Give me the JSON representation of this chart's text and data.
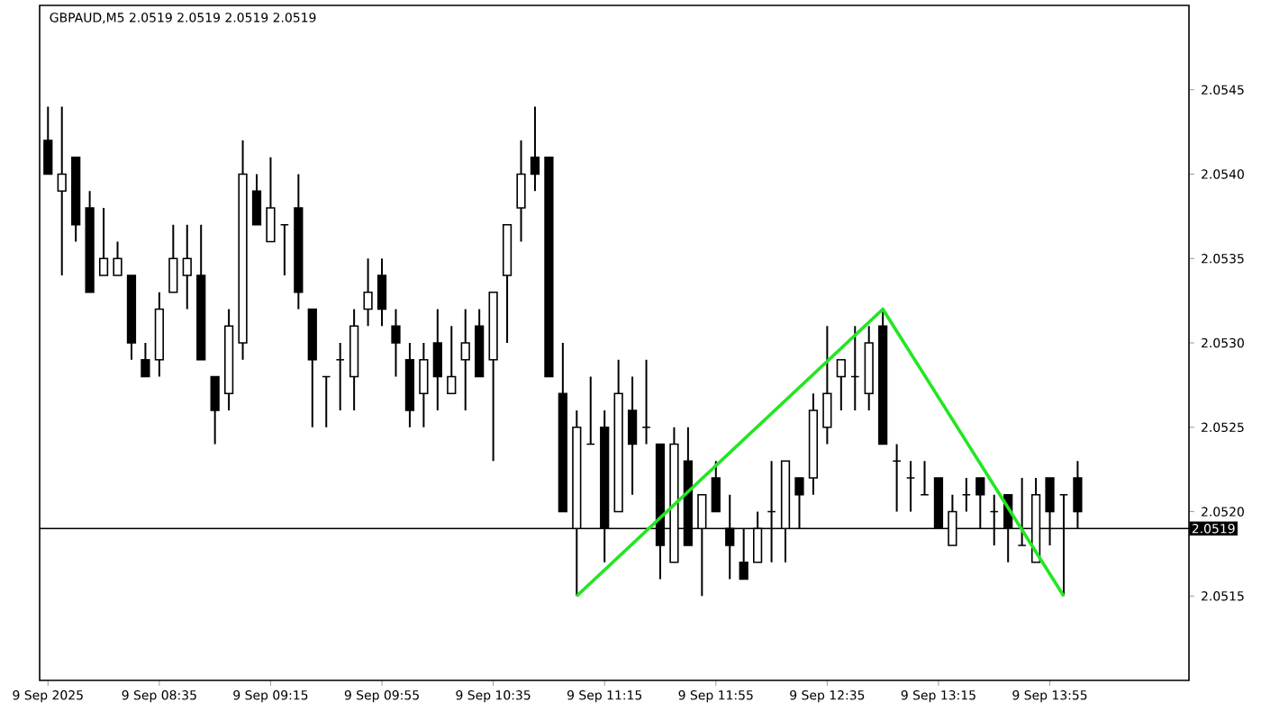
{
  "chart_data": {
    "type": "candlestick",
    "title": "GBPAUD,M5  2.0519 2.0519 2.0519 2.0519",
    "xlim": [
      "2025-09-09T07:52",
      "2025-09-09T14:45"
    ],
    "xticks": [
      {
        "value": "2025-09-09T07:55",
        "label": "9 Sep 2025"
      },
      {
        "value": "2025-09-09T08:35",
        "label": "9 Sep 08:35"
      },
      {
        "value": "2025-09-09T09:15",
        "label": "9 Sep 09:15"
      },
      {
        "value": "2025-09-09T09:55",
        "label": "9 Sep 09:55"
      },
      {
        "value": "2025-09-09T10:35",
        "label": "9 Sep 10:35"
      },
      {
        "value": "2025-09-09T11:15",
        "label": "9 Sep 11:15"
      },
      {
        "value": "2025-09-09T11:55",
        "label": "9 Sep 11:55"
      },
      {
        "value": "2025-09-09T12:35",
        "label": "9 Sep 12:35"
      },
      {
        "value": "2025-09-09T13:15",
        "label": "9 Sep 13:15"
      },
      {
        "value": "2025-09-09T13:55",
        "label": "9 Sep 13:55"
      }
    ],
    "ylim": [
      2.051,
      2.055
    ],
    "yticks": [
      2.0515,
      {
        "value": 2.052,
        "label": "2.0520"
      },
      2.0525,
      {
        "value": 2.053,
        "label": "2.0530"
      },
      2.0535,
      {
        "value": 2.054,
        "label": "2.0540"
      },
      2.0545
    ],
    "ref_lines": [
      {
        "axis": "y",
        "value": 2.0519,
        "label": "2.0519"
      }
    ],
    "series": [
      {
        "x": [
          "2025-09-09T07:55",
          "2025-09-09T08:00",
          "2025-09-09T08:05",
          "2025-09-09T08:10",
          "2025-09-09T08:15",
          "2025-09-09T08:20",
          "2025-09-09T08:25",
          "2025-09-09T08:30",
          "2025-09-09T08:35",
          "2025-09-09T08:40",
          "2025-09-09T08:45",
          "2025-09-09T08:50",
          "2025-09-09T08:55",
          "2025-09-09T09:00",
          "2025-09-09T09:05",
          "2025-09-09T09:10",
          "2025-09-09T09:15",
          "2025-09-09T09:20",
          "2025-09-09T09:25",
          "2025-09-09T09:30",
          "2025-09-09T09:35",
          "2025-09-09T09:40",
          "2025-09-09T09:45",
          "2025-09-09T09:50",
          "2025-09-09T09:55",
          "2025-09-09T10:00",
          "2025-09-09T10:05",
          "2025-09-09T10:10",
          "2025-09-09T10:15",
          "2025-09-09T10:20",
          "2025-09-09T10:25",
          "2025-09-09T10:30",
          "2025-09-09T10:35",
          "2025-09-09T10:40",
          "2025-09-09T10:45",
          "2025-09-09T10:50",
          "2025-09-09T10:55",
          "2025-09-09T11:00",
          "2025-09-09T11:05",
          "2025-09-09T11:10",
          "2025-09-09T11:15",
          "2025-09-09T11:20",
          "2025-09-09T11:25",
          "2025-09-09T11:30",
          "2025-09-09T11:35",
          "2025-09-09T11:40",
          "2025-09-09T11:45",
          "2025-09-09T11:50",
          "2025-09-09T11:55",
          "2025-09-09T12:00",
          "2025-09-09T12:05",
          "2025-09-09T12:10",
          "2025-09-09T12:15",
          "2025-09-09T12:20",
          "2025-09-09T12:25",
          "2025-09-09T12:30",
          "2025-09-09T12:35",
          "2025-09-09T12:40",
          "2025-09-09T12:45",
          "2025-09-09T12:50",
          "2025-09-09T12:55",
          "2025-09-09T13:00",
          "2025-09-09T13:05",
          "2025-09-09T13:10",
          "2025-09-09T13:15",
          "2025-09-09T13:20",
          "2025-09-09T13:25",
          "2025-09-09T13:30",
          "2025-09-09T13:35",
          "2025-09-09T13:40",
          "2025-09-09T13:45",
          "2025-09-09T13:50",
          "2025-09-09T13:55",
          "2025-09-09T14:00",
          "2025-09-09T14:05"
        ],
        "ohlc": [
          [
            2.0542,
            2.0544,
            2.054,
            2.054
          ],
          [
            2.0539,
            2.0544,
            2.0534,
            2.054
          ],
          [
            2.0541,
            2.0541,
            2.0536,
            2.0537
          ],
          [
            2.0538,
            2.0539,
            2.0533,
            2.0533
          ],
          [
            2.0534,
            2.0538,
            2.0534,
            2.0535
          ],
          [
            2.0534,
            2.0536,
            2.0534,
            2.0535
          ],
          [
            2.0534,
            2.0534,
            2.0529,
            2.053
          ],
          [
            2.0529,
            2.053,
            2.0528,
            2.0528
          ],
          [
            2.0529,
            2.0533,
            2.0528,
            2.0532
          ],
          [
            2.0533,
            2.0537,
            2.0533,
            2.0535
          ],
          [
            2.0534,
            2.0537,
            2.0532,
            2.0535
          ],
          [
            2.0534,
            2.0537,
            2.0529,
            2.0529
          ],
          [
            2.0528,
            2.0528,
            2.0524,
            2.0526
          ],
          [
            2.0527,
            2.0532,
            2.0526,
            2.0531
          ],
          [
            2.053,
            2.0542,
            2.0529,
            2.054
          ],
          [
            2.0539,
            2.054,
            2.0537,
            2.0537
          ],
          [
            2.0536,
            2.0541,
            2.0536,
            2.0538
          ],
          [
            2.0537,
            2.0537,
            2.0534,
            2.0537
          ],
          [
            2.0538,
            2.054,
            2.0532,
            2.0533
          ],
          [
            2.0532,
            2.0532,
            2.0525,
            2.0529
          ],
          [
            2.0528,
            2.0528,
            2.0525,
            2.0528
          ],
          [
            2.0529,
            2.053,
            2.0526,
            2.0529
          ],
          [
            2.0528,
            2.0532,
            2.0526,
            2.0531
          ],
          [
            2.0532,
            2.0535,
            2.0531,
            2.0533
          ],
          [
            2.0534,
            2.0535,
            2.0531,
            2.0532
          ],
          [
            2.0531,
            2.0532,
            2.0528,
            2.053
          ],
          [
            2.0529,
            2.053,
            2.0525,
            2.0526
          ],
          [
            2.0527,
            2.053,
            2.0525,
            2.0529
          ],
          [
            2.053,
            2.0532,
            2.0526,
            2.0528
          ],
          [
            2.0527,
            2.0531,
            2.0527,
            2.0528
          ],
          [
            2.0529,
            2.0532,
            2.0526,
            2.053
          ],
          [
            2.0531,
            2.0532,
            2.0528,
            2.0528
          ],
          [
            2.0529,
            2.0533,
            2.0523,
            2.0533
          ],
          [
            2.0534,
            2.0537,
            2.053,
            2.0537
          ],
          [
            2.0538,
            2.0542,
            2.0536,
            2.054
          ],
          [
            2.0541,
            2.0544,
            2.0539,
            2.054
          ],
          [
            2.0541,
            2.0541,
            2.0528,
            2.0528
          ],
          [
            2.0527,
            2.053,
            2.052,
            2.052
          ],
          [
            2.0519,
            2.0526,
            2.0515,
            2.0525
          ],
          [
            2.0524,
            2.0528,
            2.0524,
            2.0524
          ],
          [
            2.0525,
            2.0526,
            2.0517,
            2.0519
          ],
          [
            2.052,
            2.0529,
            2.052,
            2.0527
          ],
          [
            2.0526,
            2.0528,
            2.0521,
            2.0524
          ],
          [
            2.0525,
            2.0529,
            2.0524,
            2.0525
          ],
          [
            2.0524,
            2.0524,
            2.0516,
            2.0518
          ],
          [
            2.0517,
            2.0525,
            2.0517,
            2.0524
          ],
          [
            2.0523,
            2.0525,
            2.0518,
            2.0518
          ],
          [
            2.0519,
            2.0521,
            2.0515,
            2.0521
          ],
          [
            2.0522,
            2.0523,
            2.052,
            2.052
          ],
          [
            2.0519,
            2.0521,
            2.0516,
            2.0518
          ],
          [
            2.0517,
            2.0519,
            2.0516,
            2.0516
          ],
          [
            2.0517,
            2.052,
            2.0517,
            2.0519
          ],
          [
            2.052,
            2.0523,
            2.0517,
            2.052
          ],
          [
            2.0519,
            2.0523,
            2.0517,
            2.0523
          ],
          [
            2.0522,
            2.0522,
            2.0519,
            2.0521
          ],
          [
            2.0522,
            2.0527,
            2.0521,
            2.0526
          ],
          [
            2.0525,
            2.0531,
            2.0524,
            2.0527
          ],
          [
            2.0528,
            2.0529,
            2.0526,
            2.0529
          ],
          [
            2.0528,
            2.0531,
            2.0526,
            2.0528
          ],
          [
            2.0527,
            2.0531,
            2.0526,
            2.053
          ],
          [
            2.0531,
            2.0532,
            2.0524,
            2.0524
          ],
          [
            2.0523,
            2.0524,
            2.052,
            2.0523
          ],
          [
            2.0522,
            2.0523,
            2.052,
            2.0522
          ],
          [
            2.0521,
            2.0523,
            2.0521,
            2.0521
          ],
          [
            2.0522,
            2.0522,
            2.0519,
            2.0519
          ],
          [
            2.0518,
            2.0521,
            2.0518,
            2.052
          ],
          [
            2.0521,
            2.0522,
            2.052,
            2.0521
          ],
          [
            2.0522,
            2.0522,
            2.0519,
            2.0521
          ],
          [
            2.052,
            2.0521,
            2.0518,
            2.052
          ],
          [
            2.0521,
            2.0521,
            2.0517,
            2.0519
          ],
          [
            2.0518,
            2.0522,
            2.0518,
            2.0518
          ],
          [
            2.0517,
            2.0522,
            2.0517,
            2.0521
          ],
          [
            2.0522,
            2.0522,
            2.0518,
            2.052
          ],
          [
            2.0521,
            2.0521,
            2.0515,
            2.0521
          ],
          [
            2.0522,
            2.0523,
            2.0519,
            2.052
          ]
        ]
      },
      {
        "type": "line",
        "color": "#22e622",
        "x": [
          "2025-09-09T11:05",
          "2025-09-09T12:55",
          "2025-09-09T14:00"
        ],
        "values": [
          2.0515,
          2.0532,
          2.0515
        ]
      }
    ]
  }
}
